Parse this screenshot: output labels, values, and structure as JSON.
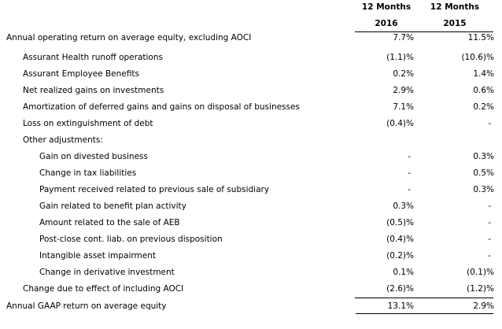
{
  "header": {
    "col1_line1": "12 Months",
    "col1_line2": "2016",
    "col2_line1": "12 Months",
    "col2_line2": "2015"
  },
  "rows": [
    {
      "label": "Annual operating return on average equity, excluding AOCI",
      "level": 0,
      "v2016": "7.7%",
      "v2015": "11.5%"
    },
    {
      "label": "Assurant Health runoff operations",
      "level": 1,
      "v2016": "(1.1)%",
      "v2015": "(10.6)%"
    },
    {
      "label": "Assurant Employee Benefits",
      "level": 1,
      "v2016": "0.2%",
      "v2015": "1.4%"
    },
    {
      "label": "Net realized gains on investments",
      "level": 1,
      "v2016": "2.9%",
      "v2015": "0.6%"
    },
    {
      "label": "Amortization of deferred gains and gains on disposal of businesses",
      "level": 1,
      "v2016": "7.1%",
      "v2015": "0.2%"
    },
    {
      "label": "Loss on extinguishment of debt",
      "level": 1,
      "v2016": "(0.4)%",
      "v2015": "-"
    },
    {
      "label": "Other adjustments:",
      "level": 1,
      "v2016": "",
      "v2015": ""
    },
    {
      "label": "Gain on divested business",
      "level": 2,
      "v2016": "-",
      "v2015": "0.3%"
    },
    {
      "label": "Change in tax liabilities",
      "level": 2,
      "v2016": "-",
      "v2015": "0.5%"
    },
    {
      "label": "Payment received related to previous sale of subsidiary",
      "level": 2,
      "v2016": "-",
      "v2015": "0.3%"
    },
    {
      "label": "Gain related to benefit plan activity",
      "level": 2,
      "v2016": "0.3%",
      "v2015": "-"
    },
    {
      "label": "Amount related to the sale of AEB",
      "level": 2,
      "v2016": "(0.5)%",
      "v2015": "-"
    },
    {
      "label": "Post-close cont. liab. on previous disposition",
      "level": 2,
      "v2016": "(0.4)%",
      "v2015": "-"
    },
    {
      "label": "Intangible asset impairment",
      "level": 2,
      "v2016": "(0.2)%",
      "v2015": "-"
    },
    {
      "label": "Change in derivative investment",
      "level": 2,
      "v2016": "0.1%",
      "v2015": "(0.1)%"
    },
    {
      "label": "Change due to effect of including AOCI",
      "level": 1,
      "v2016": "(2.6)%",
      "v2015": "(1.2)%"
    },
    {
      "label": "Annual GAAP return on average equity",
      "level": 0,
      "v2016": "13.1%",
      "v2015": "2.9%"
    }
  ]
}
